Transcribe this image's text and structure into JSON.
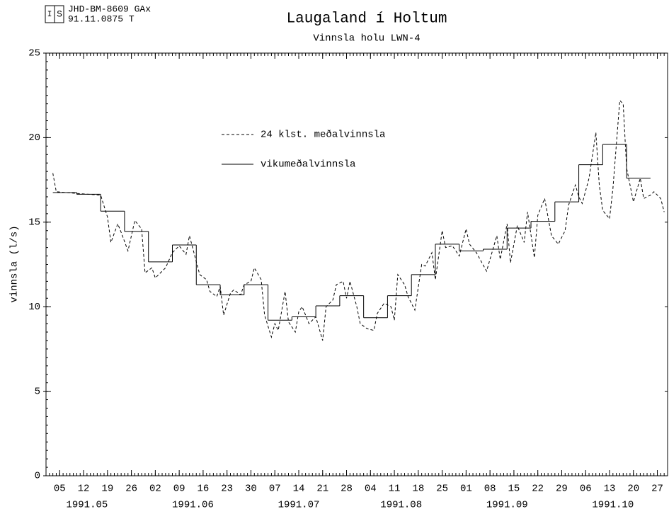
{
  "header": {
    "code": "JHD-BM-8609 GAx",
    "number": "91.11.0875  T"
  },
  "chart_data": {
    "type": "line",
    "title": "Laugaland í Holtum",
    "subtitle": "Vinnsla holu LWN-4",
    "ylabel": "vinnsla (l/s)",
    "xlim": [
      "1991-05-01",
      "1991-10-30"
    ],
    "ylim": [
      0,
      25
    ],
    "yticks": [
      0,
      5,
      10,
      15,
      20,
      25
    ],
    "xticks": [
      {
        "value": "1991-05-05",
        "label": "05"
      },
      {
        "value": "1991-05-12",
        "label": "12"
      },
      {
        "value": "1991-05-19",
        "label": "19"
      },
      {
        "value": "1991-05-26",
        "label": "26"
      },
      {
        "value": "1991-06-02",
        "label": "02"
      },
      {
        "value": "1991-06-09",
        "label": "09"
      },
      {
        "value": "1991-06-16",
        "label": "16"
      },
      {
        "value": "1991-06-23",
        "label": "23"
      },
      {
        "value": "1991-06-30",
        "label": "30"
      },
      {
        "value": "1991-07-07",
        "label": "07"
      },
      {
        "value": "1991-07-14",
        "label": "14"
      },
      {
        "value": "1991-07-21",
        "label": "21"
      },
      {
        "value": "1991-07-28",
        "label": "28"
      },
      {
        "value": "1991-08-04",
        "label": "04"
      },
      {
        "value": "1991-08-11",
        "label": "11"
      },
      {
        "value": "1991-08-18",
        "label": "18"
      },
      {
        "value": "1991-08-25",
        "label": "25"
      },
      {
        "value": "1991-09-01",
        "label": "01"
      },
      {
        "value": "1991-09-08",
        "label": "08"
      },
      {
        "value": "1991-09-15",
        "label": "15"
      },
      {
        "value": "1991-09-22",
        "label": "22"
      },
      {
        "value": "1991-09-29",
        "label": "29"
      },
      {
        "value": "1991-10-06",
        "label": "06"
      },
      {
        "value": "1991-10-13",
        "label": "13"
      },
      {
        "value": "1991-10-20",
        "label": "20"
      },
      {
        "value": "1991-10-27",
        "label": "27"
      }
    ],
    "month_labels": [
      {
        "value": "1991-05-13",
        "label": "1991.05"
      },
      {
        "value": "1991-06-13",
        "label": "1991.06"
      },
      {
        "value": "1991-07-14",
        "label": "1991.07"
      },
      {
        "value": "1991-08-13",
        "label": "1991.08"
      },
      {
        "value": "1991-09-13",
        "label": "1991.09"
      },
      {
        "value": "1991-10-14",
        "label": "1991.10"
      }
    ],
    "series": [
      {
        "name": "24 klst. meðalvinnsla",
        "color": "#000000",
        "style": "dashed",
        "x": [
          "1991-05-03",
          "1991-05-04",
          "1991-05-10",
          "1991-05-17",
          "1991-05-19",
          "1991-05-20",
          "1991-05-22",
          "1991-05-23",
          "1991-05-25",
          "1991-05-27",
          "1991-05-29",
          "1991-05-30",
          "1991-06-01",
          "1991-06-02",
          "1991-06-05",
          "1991-06-07",
          "1991-06-09",
          "1991-06-11",
          "1991-06-12",
          "1991-06-15",
          "1991-06-17",
          "1991-06-18",
          "1991-06-20",
          "1991-06-21",
          "1991-06-22",
          "1991-06-24",
          "1991-06-25",
          "1991-06-27",
          "1991-06-28",
          "1991-06-30",
          "1991-07-01",
          "1991-07-03",
          "1991-07-04",
          "1991-07-06",
          "1991-07-07",
          "1991-07-08",
          "1991-07-10",
          "1991-07-11",
          "1991-07-13",
          "1991-07-14",
          "1991-07-15",
          "1991-07-17",
          "1991-07-19",
          "1991-07-21",
          "1991-07-22",
          "1991-07-24",
          "1991-07-25",
          "1991-07-27",
          "1991-07-28",
          "1991-07-29",
          "1991-07-31",
          "1991-08-01",
          "1991-08-03",
          "1991-08-05",
          "1991-08-06",
          "1991-08-08",
          "1991-08-10",
          "1991-08-11",
          "1991-08-12",
          "1991-08-14",
          "1991-08-15",
          "1991-08-17",
          "1991-08-19",
          "1991-08-20",
          "1991-08-22",
          "1991-08-23",
          "1991-08-25",
          "1991-08-26",
          "1991-08-28",
          "1991-08-30",
          "1991-09-01",
          "1991-09-02",
          "1991-09-04",
          "1991-09-07",
          "1991-09-10",
          "1991-09-11",
          "1991-09-13",
          "1991-09-14",
          "1991-09-16",
          "1991-09-18",
          "1991-09-19",
          "1991-09-21",
          "1991-09-22",
          "1991-09-24",
          "1991-09-26",
          "1991-09-28",
          "1991-09-30",
          "1991-10-01",
          "1991-10-03",
          "1991-10-04",
          "1991-10-05",
          "1991-10-07",
          "1991-10-09",
          "1991-10-10",
          "1991-10-11",
          "1991-10-13",
          "1991-10-14",
          "1991-10-16",
          "1991-10-17",
          "1991-10-18",
          "1991-10-20",
          "1991-10-22",
          "1991-10-23",
          "1991-10-25",
          "1991-10-26",
          "1991-10-28",
          "1991-10-29"
        ],
        "values": [
          17.9,
          16.8,
          16.7,
          16.6,
          15.3,
          13.8,
          14.9,
          14.4,
          13.3,
          15.1,
          14.6,
          12.0,
          12.3,
          11.7,
          12.3,
          13.2,
          13.6,
          13.1,
          14.2,
          11.9,
          11.6,
          10.9,
          10.6,
          11.2,
          9.5,
          10.8,
          11.0,
          10.7,
          11.3,
          11.5,
          12.3,
          11.6,
          9.5,
          8.2,
          9.0,
          8.6,
          10.9,
          9.1,
          8.5,
          9.7,
          10.0,
          9.0,
          9.4,
          8.0,
          10.0,
          10.4,
          11.3,
          11.5,
          10.5,
          11.5,
          10.0,
          9.0,
          8.7,
          8.6,
          9.6,
          10.2,
          10.0,
          9.2,
          11.9,
          11.3,
          10.6,
          9.8,
          12.5,
          12.4,
          13.2,
          11.6,
          14.5,
          13.5,
          13.6,
          13.0,
          14.6,
          13.7,
          13.2,
          12.1,
          14.2,
          12.8,
          14.9,
          12.6,
          14.8,
          13.8,
          15.6,
          12.9,
          15.4,
          16.4,
          14.2,
          13.7,
          14.5,
          16.0,
          17.2,
          16.5,
          16.1,
          17.6,
          20.3,
          17.2,
          15.7,
          15.2,
          17.0,
          22.2,
          22.0,
          18.2,
          16.2,
          17.6,
          16.4,
          16.6,
          16.8,
          16.4,
          15.6
        ]
      },
      {
        "name": "vikumeðalvinnsla",
        "color": "#000000",
        "style": "step-weekly",
        "x": [
          "1991-05-03",
          "1991-05-10",
          "1991-05-17",
          "1991-05-24",
          "1991-05-31",
          "1991-06-07",
          "1991-06-14",
          "1991-06-21",
          "1991-06-28",
          "1991-07-05",
          "1991-07-12",
          "1991-07-19",
          "1991-07-26",
          "1991-08-02",
          "1991-08-09",
          "1991-08-16",
          "1991-08-23",
          "1991-08-30",
          "1991-09-06",
          "1991-09-13",
          "1991-09-20",
          "1991-09-27",
          "1991-10-04",
          "1991-10-11",
          "1991-10-18"
        ],
        "values": [
          16.75,
          16.65,
          15.65,
          14.45,
          12.65,
          13.65,
          11.3,
          10.7,
          11.3,
          9.2,
          9.4,
          10.05,
          10.65,
          9.35,
          10.65,
          11.9,
          13.7,
          13.3,
          13.4,
          14.65,
          15.05,
          16.2,
          18.4,
          19.6,
          17.6
        ]
      }
    ]
  }
}
